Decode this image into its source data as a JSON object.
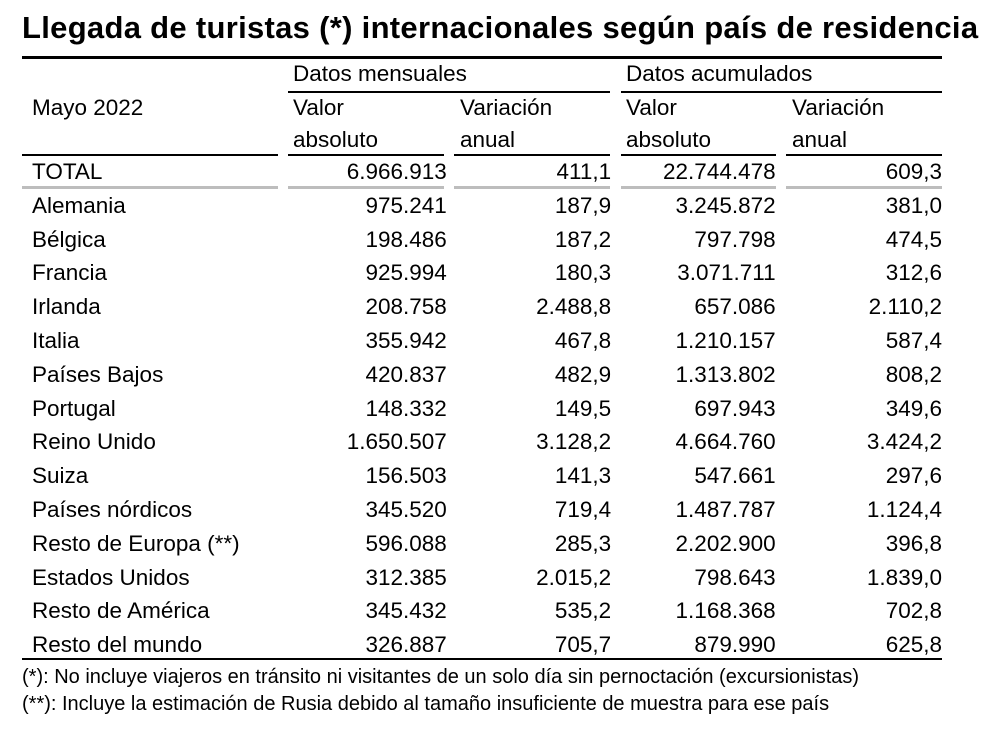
{
  "title": "Llegada de turistas (*) internacionales según país de residencia",
  "period": "Mayo 2022",
  "groups": [
    "Datos mensuales",
    "Datos acumulados"
  ],
  "columns": {
    "valor_l1": "Valor",
    "valor_l2": "absoluto",
    "var_l1": "Variación",
    "var_l2": "anual"
  },
  "rows": [
    {
      "name": "TOTAL",
      "m_abs": "6.966.913",
      "m_var": "411,1",
      "a_abs": "22.744.478",
      "a_var": "609,3"
    },
    {
      "name": "Alemania",
      "m_abs": "975.241",
      "m_var": "187,9",
      "a_abs": "3.245.872",
      "a_var": "381,0"
    },
    {
      "name": "Bélgica",
      "m_abs": "198.486",
      "m_var": "187,2",
      "a_abs": "797.798",
      "a_var": "474,5"
    },
    {
      "name": "Francia",
      "m_abs": "925.994",
      "m_var": "180,3",
      "a_abs": "3.071.711",
      "a_var": "312,6"
    },
    {
      "name": "Irlanda",
      "m_abs": "208.758",
      "m_var": "2.488,8",
      "a_abs": "657.086",
      "a_var": "2.110,2"
    },
    {
      "name": "Italia",
      "m_abs": "355.942",
      "m_var": "467,8",
      "a_abs": "1.210.157",
      "a_var": "587,4"
    },
    {
      "name": "Países Bajos",
      "m_abs": "420.837",
      "m_var": "482,9",
      "a_abs": "1.313.802",
      "a_var": "808,2"
    },
    {
      "name": "Portugal",
      "m_abs": "148.332",
      "m_var": "149,5",
      "a_abs": "697.943",
      "a_var": "349,6"
    },
    {
      "name": "Reino Unido",
      "m_abs": "1.650.507",
      "m_var": "3.128,2",
      "a_abs": "4.664.760",
      "a_var": "3.424,2"
    },
    {
      "name": "Suiza",
      "m_abs": "156.503",
      "m_var": "141,3",
      "a_abs": "547.661",
      "a_var": "297,6"
    },
    {
      "name": "Países nórdicos",
      "m_abs": "345.520",
      "m_var": "719,4",
      "a_abs": "1.487.787",
      "a_var": "1.124,4"
    },
    {
      "name": "Resto de Europa (**)",
      "m_abs": "596.088",
      "m_var": "285,3",
      "a_abs": "2.202.900",
      "a_var": "396,8"
    },
    {
      "name": "Estados Unidos",
      "m_abs": "312.385",
      "m_var": "2.015,2",
      "a_abs": "798.643",
      "a_var": "1.839,0"
    },
    {
      "name": "Resto de América",
      "m_abs": "345.432",
      "m_var": "535,2",
      "a_abs": "1.168.368",
      "a_var": "702,8"
    },
    {
      "name": "Resto del mundo",
      "m_abs": "326.887",
      "m_var": "705,7",
      "a_abs": "879.990",
      "a_var": "625,8"
    }
  ],
  "notes": [
    "(*): No incluye viajeros en tránsito ni visitantes de un solo día sin pernoctación (excursionistas)",
    "(**): Incluye la estimación de Rusia debido al tamaño insuficiente de muestra para ese país"
  ]
}
